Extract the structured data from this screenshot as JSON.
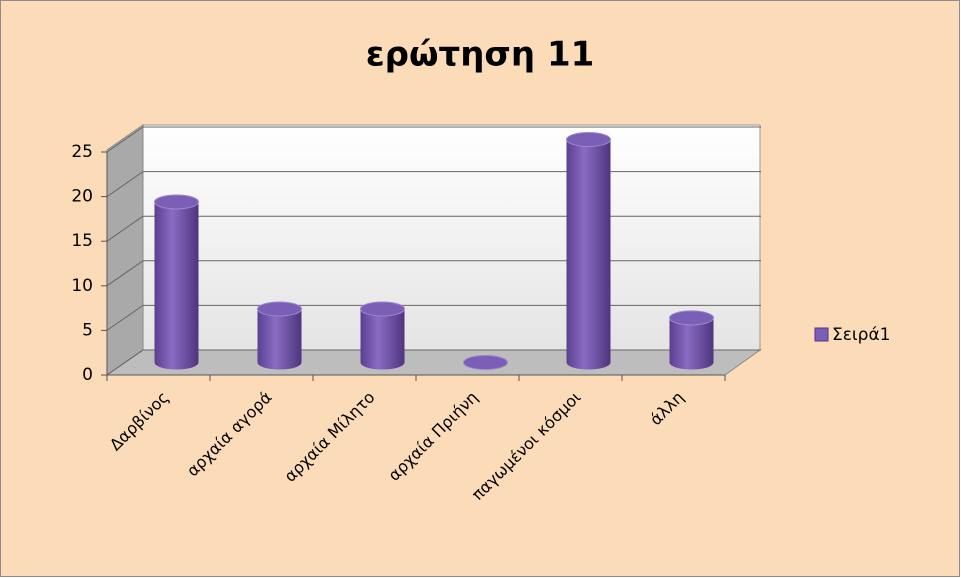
{
  "chart_data": {
    "type": "bar3d",
    "title": "ερώτηση 11",
    "categories": [
      "Δαρβίνος",
      "αρχαία αγορά",
      "αρχαία Μίλητο",
      "αρχαία Πριήνη",
      "παγωμένοι κόσμοι",
      "άλλη"
    ],
    "series": [
      {
        "name": "Σειρά1",
        "color": "#7b5eb5",
        "values": [
          18,
          6,
          6,
          0,
          25,
          5
        ]
      }
    ],
    "ylim": [
      0,
      25
    ],
    "yticks": [
      0,
      5,
      10,
      15,
      20,
      25
    ],
    "grid": true,
    "legend": "right"
  }
}
